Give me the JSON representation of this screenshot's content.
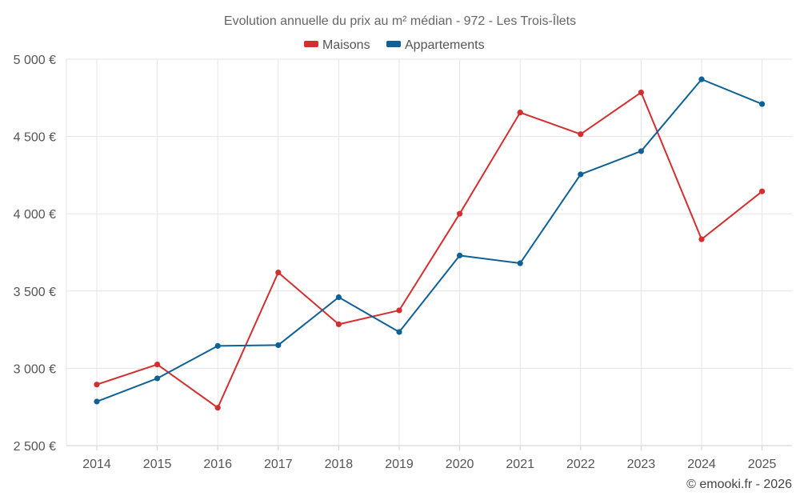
{
  "chart_data": {
    "type": "line",
    "title": "Evolution annuelle du prix au m² médian - 972 - Les Trois-Îlets",
    "categories": [
      "2014",
      "2015",
      "2016",
      "2017",
      "2018",
      "2019",
      "2020",
      "2021",
      "2022",
      "2023",
      "2024",
      "2025"
    ],
    "ylim": [
      2500,
      5000
    ],
    "yticks": [
      2500,
      3000,
      3500,
      4000,
      4500,
      5000
    ],
    "ytick_labels": [
      "2 500 €",
      "3 000 €",
      "3 500 €",
      "4 000 €",
      "4 500 €",
      "5 000 €"
    ],
    "xlabel": "",
    "ylabel": "",
    "grid": true,
    "legend_position": "top-center",
    "series": [
      {
        "name": "Maisons",
        "color": "#d32f2f",
        "values": [
          2895,
          3025,
          2745,
          3620,
          3285,
          3375,
          4000,
          4655,
          4515,
          4785,
          3835,
          4145
        ]
      },
      {
        "name": "Appartements",
        "color": "#0e6196",
        "values": [
          2785,
          2935,
          3145,
          3150,
          3460,
          3235,
          3730,
          3680,
          4255,
          4405,
          4870,
          4710
        ]
      }
    ]
  },
  "footer": {
    "credit": "© emooki.fr - 2026"
  }
}
